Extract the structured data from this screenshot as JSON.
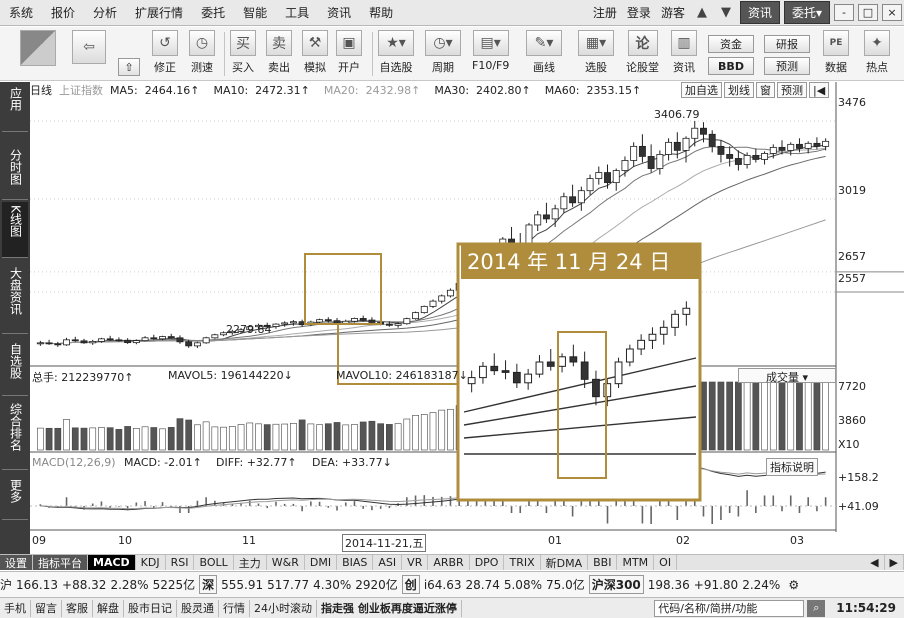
{
  "menubar": {
    "items": [
      "系统",
      "报价",
      "分析",
      "扩展行情",
      "委托",
      "智能",
      "工具",
      "资讯",
      "帮助"
    ],
    "right_links": [
      "注册",
      "登录",
      "游客"
    ],
    "news_btn": "资讯",
    "trade_btn": "委托▾",
    "win_buttons": [
      "-",
      "□",
      "×"
    ]
  },
  "toolbar": {
    "buttons": [
      "修正",
      "测速",
      "买入",
      "卖出",
      "模拟",
      "开户",
      "自选股",
      "周期",
      "F10/F9",
      "画线",
      "选股",
      "论股堂",
      "资讯",
      "数据",
      "热点"
    ],
    "side_buttons": [
      "资金",
      "BBD",
      "研报",
      "预测"
    ],
    "pe_label": "PE"
  },
  "leftpanel": {
    "tabs": [
      "应用",
      "分时图",
      "K线图",
      "大盘资讯",
      "自选股",
      "综合排名",
      "更多"
    ]
  },
  "chart": {
    "period": "日线",
    "index_name": "上证指数",
    "ma": [
      {
        "label": "MA5:",
        "value": "2464.16↑",
        "color": "#000000"
      },
      {
        "label": "MA10:",
        "value": "2472.31↑",
        "color": "#000000"
      },
      {
        "label": "MA20:",
        "value": "2432.98↑",
        "color": "#9a9a9a"
      },
      {
        "label": "MA30:",
        "value": "2402.80↑",
        "color": "#000000"
      },
      {
        "label": "MA60:",
        "value": "2353.15↑",
        "color": "#000000"
      }
    ],
    "top_buttons": [
      "加自选",
      "划线",
      "窗",
      "预测",
      "|◀"
    ],
    "price_labels": [
      "3476",
      "3019",
      "2657",
      "2557"
    ],
    "high_label": "3406.79",
    "low_label": "2279.84",
    "volume": {
      "total": "总手: 212239770↑",
      "mavol5": "MAVOL5: 196144220↓",
      "mavol10": "MAVOL10: 246183187↓",
      "menu_label": "成交量 ▾",
      "axis_labels": [
        "7720",
        "3860",
        "X10"
      ]
    },
    "macd": {
      "title": "MACD(12,26,9)",
      "macd": "MACD: -2.01↑",
      "diff": "DIFF: +32.77↑",
      "dea": "DEA: +33.77↓",
      "axis_labels": [
        "+158.2",
        "+41.09"
      ],
      "indicator_btn": "指标说明"
    },
    "xaxis": [
      "09",
      "10",
      "11",
      "2014-11-21,五",
      "01",
      "02",
      "03"
    ],
    "zoom_title": "2014 年 11 月 24 日",
    "candles": [
      {
        "o": 2300,
        "h": 2315,
        "l": 2290,
        "c": 2305
      },
      {
        "o": 2305,
        "h": 2320,
        "l": 2295,
        "c": 2300
      },
      {
        "o": 2300,
        "h": 2310,
        "l": 2285,
        "c": 2295
      },
      {
        "o": 2295,
        "h": 2330,
        "l": 2290,
        "c": 2320
      },
      {
        "o": 2320,
        "h": 2335,
        "l": 2310,
        "c": 2315
      },
      {
        "o": 2315,
        "h": 2325,
        "l": 2300,
        "c": 2305
      },
      {
        "o": 2305,
        "h": 2320,
        "l": 2295,
        "c": 2312
      },
      {
        "o": 2312,
        "h": 2330,
        "l": 2305,
        "c": 2325
      },
      {
        "o": 2325,
        "h": 2340,
        "l": 2315,
        "c": 2320
      },
      {
        "o": 2320,
        "h": 2332,
        "l": 2310,
        "c": 2318
      },
      {
        "o": 2318,
        "h": 2328,
        "l": 2300,
        "c": 2306
      },
      {
        "o": 2306,
        "h": 2322,
        "l": 2298,
        "c": 2316
      },
      {
        "o": 2316,
        "h": 2338,
        "l": 2312,
        "c": 2330
      },
      {
        "o": 2330,
        "h": 2345,
        "l": 2320,
        "c": 2325
      },
      {
        "o": 2325,
        "h": 2340,
        "l": 2318,
        "c": 2336
      },
      {
        "o": 2336,
        "h": 2350,
        "l": 2325,
        "c": 2330
      },
      {
        "o": 2330,
        "h": 2342,
        "l": 2300,
        "c": 2310
      },
      {
        "o": 2310,
        "h": 2320,
        "l": 2280,
        "c": 2290
      },
      {
        "o": 2290,
        "h": 2310,
        "l": 2279,
        "c": 2305
      },
      {
        "o": 2305,
        "h": 2335,
        "l": 2300,
        "c": 2330
      },
      {
        "o": 2330,
        "h": 2350,
        "l": 2325,
        "c": 2345
      },
      {
        "o": 2345,
        "h": 2362,
        "l": 2338,
        "c": 2355
      },
      {
        "o": 2355,
        "h": 2370,
        "l": 2345,
        "c": 2362
      },
      {
        "o": 2362,
        "h": 2378,
        "l": 2350,
        "c": 2370
      },
      {
        "o": 2370,
        "h": 2390,
        "l": 2360,
        "c": 2385
      },
      {
        "o": 2385,
        "h": 2400,
        "l": 2372,
        "c": 2392
      },
      {
        "o": 2392,
        "h": 2405,
        "l": 2378,
        "c": 2386
      },
      {
        "o": 2386,
        "h": 2402,
        "l": 2375,
        "c": 2398
      },
      {
        "o": 2398,
        "h": 2412,
        "l": 2385,
        "c": 2404
      },
      {
        "o": 2404,
        "h": 2418,
        "l": 2390,
        "c": 2410
      },
      {
        "o": 2410,
        "h": 2420,
        "l": 2385,
        "c": 2395
      },
      {
        "o": 2395,
        "h": 2415,
        "l": 2388,
        "c": 2408
      },
      {
        "o": 2408,
        "h": 2425,
        "l": 2400,
        "c": 2420
      },
      {
        "o": 2420,
        "h": 2432,
        "l": 2405,
        "c": 2415
      },
      {
        "o": 2415,
        "h": 2428,
        "l": 2398,
        "c": 2402
      },
      {
        "o": 2402,
        "h": 2420,
        "l": 2395,
        "c": 2412
      },
      {
        "o": 2412,
        "h": 2430,
        "l": 2405,
        "c": 2426
      },
      {
        "o": 2426,
        "h": 2440,
        "l": 2410,
        "c": 2418
      },
      {
        "o": 2418,
        "h": 2432,
        "l": 2400,
        "c": 2406
      },
      {
        "o": 2406,
        "h": 2420,
        "l": 2392,
        "c": 2398
      },
      {
        "o": 2398,
        "h": 2412,
        "l": 2385,
        "c": 2392
      },
      {
        "o": 2392,
        "h": 2408,
        "l": 2380,
        "c": 2400
      },
      {
        "o": 2400,
        "h": 2430,
        "l": 2395,
        "c": 2425
      },
      {
        "o": 2425,
        "h": 2460,
        "l": 2420,
        "c": 2455
      },
      {
        "o": 2455,
        "h": 2490,
        "l": 2450,
        "c": 2486
      },
      {
        "o": 2486,
        "h": 2520,
        "l": 2478,
        "c": 2512
      },
      {
        "o": 2512,
        "h": 2545,
        "l": 2500,
        "c": 2538
      },
      {
        "o": 2538,
        "h": 2575,
        "l": 2530,
        "c": 2566
      },
      {
        "o": 2566,
        "h": 2610,
        "l": 2560,
        "c": 2600
      },
      {
        "o": 2600,
        "h": 2660,
        "l": 2595,
        "c": 2650
      },
      {
        "o": 2650,
        "h": 2690,
        "l": 2620,
        "c": 2680
      },
      {
        "o": 2680,
        "h": 2720,
        "l": 2660,
        "c": 2700
      },
      {
        "o": 2700,
        "h": 2760,
        "l": 2690,
        "c": 2750
      },
      {
        "o": 2750,
        "h": 2830,
        "l": 2740,
        "c": 2820
      },
      {
        "o": 2820,
        "h": 2880,
        "l": 2780,
        "c": 2800
      },
      {
        "o": 2800,
        "h": 2850,
        "l": 2760,
        "c": 2780
      },
      {
        "o": 2780,
        "h": 2900,
        "l": 2770,
        "c": 2890
      },
      {
        "o": 2890,
        "h": 2960,
        "l": 2860,
        "c": 2940
      },
      {
        "o": 2940,
        "h": 3000,
        "l": 2900,
        "c": 2920
      },
      {
        "o": 2920,
        "h": 2990,
        "l": 2880,
        "c": 2970
      },
      {
        "o": 2970,
        "h": 3050,
        "l": 2950,
        "c": 3030
      },
      {
        "o": 3030,
        "h": 3090,
        "l": 2980,
        "c": 3000
      },
      {
        "o": 3000,
        "h": 3080,
        "l": 2960,
        "c": 3060
      },
      {
        "o": 3060,
        "h": 3140,
        "l": 3040,
        "c": 3120
      },
      {
        "o": 3120,
        "h": 3180,
        "l": 3090,
        "c": 3150
      },
      {
        "o": 3150,
        "h": 3190,
        "l": 3070,
        "c": 3100
      },
      {
        "o": 3100,
        "h": 3170,
        "l": 3060,
        "c": 3160
      },
      {
        "o": 3160,
        "h": 3230,
        "l": 3130,
        "c": 3210
      },
      {
        "o": 3210,
        "h": 3300,
        "l": 3180,
        "c": 3280
      },
      {
        "o": 3280,
        "h": 3340,
        "l": 3200,
        "c": 3230
      },
      {
        "o": 3230,
        "h": 3290,
        "l": 3150,
        "c": 3170
      },
      {
        "o": 3170,
        "h": 3260,
        "l": 3140,
        "c": 3240
      },
      {
        "o": 3240,
        "h": 3320,
        "l": 3210,
        "c": 3300
      },
      {
        "o": 3300,
        "h": 3350,
        "l": 3220,
        "c": 3260
      },
      {
        "o": 3260,
        "h": 3330,
        "l": 3200,
        "c": 3320
      },
      {
        "o": 3320,
        "h": 3406,
        "l": 3280,
        "c": 3370
      },
      {
        "o": 3370,
        "h": 3400,
        "l": 3300,
        "c": 3340
      },
      {
        "o": 3340,
        "h": 3360,
        "l": 3250,
        "c": 3280
      },
      {
        "o": 3280,
        "h": 3310,
        "l": 3200,
        "c": 3240
      },
      {
        "o": 3240,
        "h": 3280,
        "l": 3180,
        "c": 3220
      },
      {
        "o": 3220,
        "h": 3260,
        "l": 3160,
        "c": 3190
      },
      {
        "o": 3190,
        "h": 3250,
        "l": 3170,
        "c": 3235
      },
      {
        "o": 3235,
        "h": 3270,
        "l": 3200,
        "c": 3215
      },
      {
        "o": 3215,
        "h": 3255,
        "l": 3190,
        "c": 3245
      },
      {
        "o": 3245,
        "h": 3290,
        "l": 3220,
        "c": 3275
      },
      {
        "o": 3275,
        "h": 3310,
        "l": 3240,
        "c": 3260
      },
      {
        "o": 3260,
        "h": 3300,
        "l": 3235,
        "c": 3290
      },
      {
        "o": 3290,
        "h": 3320,
        "l": 3250,
        "c": 3270
      },
      {
        "o": 3270,
        "h": 3305,
        "l": 3245,
        "c": 3295
      },
      {
        "o": 3295,
        "h": 3325,
        "l": 3265,
        "c": 3280
      },
      {
        "o": 3280,
        "h": 3320,
        "l": 3260,
        "c": 3305
      }
    ]
  },
  "indicator_tabs": [
    "设置",
    "指标平台",
    "MACD",
    "KDJ",
    "RSI",
    "BOLL",
    "主力",
    "W&R",
    "DMI",
    "BIAS",
    "ASI",
    "VR",
    "ARBR",
    "DPO",
    "TRIX",
    "新DMA",
    "BBI",
    "MTM",
    "OI"
  ],
  "ticker": [
    "沪",
    "166.13",
    "+88.32",
    "2.28%",
    "5225亿",
    "深",
    "555.91",
    "517.77",
    "4.30%",
    "2920亿",
    "创",
    "i64.63",
    "28.74",
    "5.08%",
    "75.0亿",
    "沪深300",
    "198.36",
    "+91.80",
    "2.24%"
  ],
  "statusbar": {
    "items": [
      "手机",
      "留言",
      "客服",
      "解盘",
      "股市日记",
      "股灵通",
      "行情",
      "24小时滚动"
    ],
    "headline": "指走强 创业板再度逼近涨停",
    "search_placeholder": "代码/名称/简拼/功能",
    "time": "11:54:29"
  }
}
